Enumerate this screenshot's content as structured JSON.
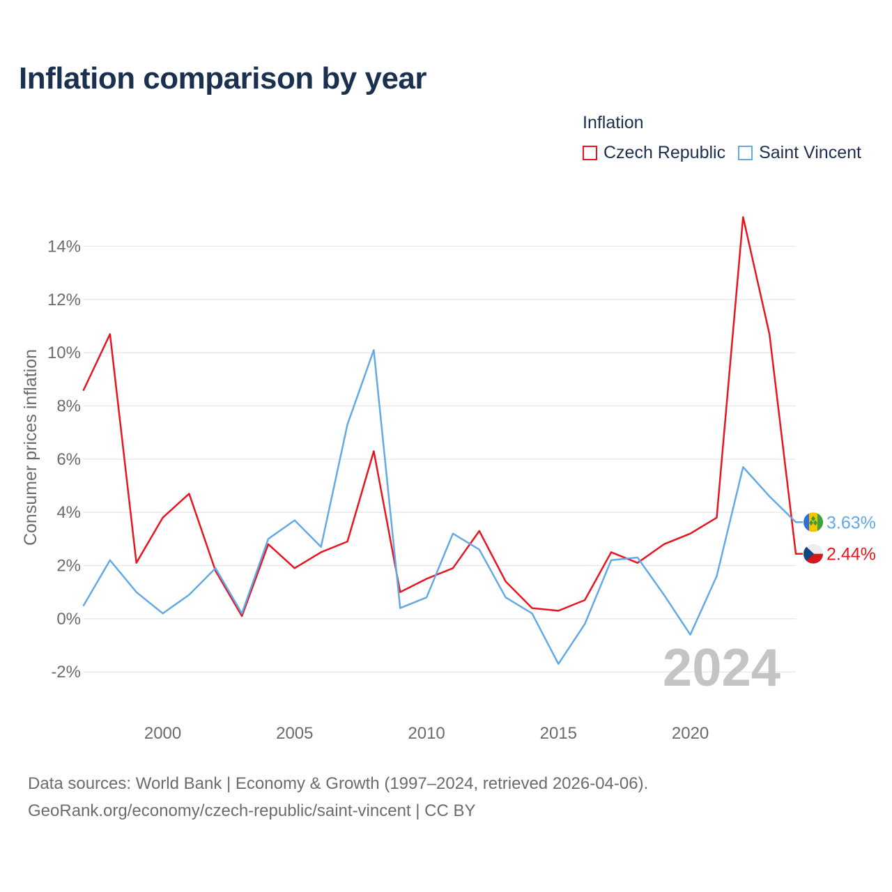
{
  "title": "Inflation comparison by year",
  "legend": {
    "title": "Inflation",
    "items": [
      {
        "label": "Czech Republic",
        "color": "#e8141e"
      },
      {
        "label": "Saint Vincent",
        "color": "#62a9e6"
      }
    ]
  },
  "year_watermark": "2024",
  "footer": {
    "line1": "Data sources: World Bank | Economy & Growth (1997–2024, retrieved 2026-04-06).",
    "line2": "GeoRank.org/economy/czech-republic/saint-vincent | CC BY"
  },
  "chart_data": {
    "type": "line",
    "ylabel": "Consumer prices inflation",
    "xlabel": "",
    "xlim": [
      1997,
      2024
    ],
    "ylim": [
      -3.2,
      15.4
    ],
    "yticks": [
      {
        "value": -2,
        "label": "-2%"
      },
      {
        "value": 0,
        "label": "0%"
      },
      {
        "value": 2,
        "label": "2%"
      },
      {
        "value": 4,
        "label": "4%"
      },
      {
        "value": 6,
        "label": "6%"
      },
      {
        "value": 8,
        "label": "8%"
      },
      {
        "value": 10,
        "label": "10%"
      },
      {
        "value": 12,
        "label": "12%"
      },
      {
        "value": 14,
        "label": "14%"
      }
    ],
    "xticks": [
      {
        "value": 2000,
        "label": "2000"
      },
      {
        "value": 2005,
        "label": "2005"
      },
      {
        "value": 2010,
        "label": "2010"
      },
      {
        "value": 2015,
        "label": "2015"
      },
      {
        "value": 2020,
        "label": "2020"
      }
    ],
    "x": [
      1997,
      1998,
      1999,
      2000,
      2001,
      2002,
      2003,
      2004,
      2005,
      2006,
      2007,
      2008,
      2009,
      2010,
      2011,
      2012,
      2013,
      2014,
      2015,
      2016,
      2017,
      2018,
      2019,
      2020,
      2021,
      2022,
      2023,
      2024
    ],
    "series": [
      {
        "name": "Czech Republic",
        "color": "#e8141e",
        "end_label": "2.44%",
        "flag": "czech-republic-flag-icon",
        "values": [
          8.6,
          10.7,
          2.1,
          3.8,
          4.7,
          1.8,
          0.1,
          2.8,
          1.9,
          2.5,
          2.9,
          6.3,
          1.0,
          1.5,
          1.9,
          3.3,
          1.4,
          0.4,
          0.3,
          0.7,
          2.5,
          2.1,
          2.8,
          3.2,
          3.8,
          15.1,
          10.7,
          2.44
        ]
      },
      {
        "name": "Saint Vincent",
        "color": "#62a9e6",
        "end_label": "3.63%",
        "flag": "saint-vincent-flag-icon",
        "values": [
          0.5,
          2.2,
          1.0,
          0.2,
          0.9,
          1.9,
          0.2,
          3.0,
          3.7,
          2.7,
          7.3,
          10.1,
          0.4,
          0.8,
          3.2,
          2.6,
          0.8,
          0.2,
          -1.7,
          -0.2,
          2.2,
          2.3,
          0.9,
          -0.6,
          1.6,
          5.7,
          4.6,
          3.63
        ]
      }
    ]
  }
}
